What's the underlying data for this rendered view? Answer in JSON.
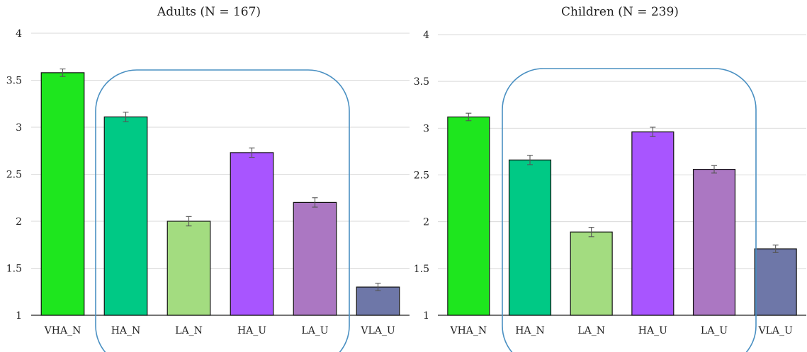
{
  "chart_data": [
    {
      "type": "bar",
      "title": "Adults (N = 167)",
      "categories": [
        "VHA_N",
        "HA_N",
        "LA_N",
        "HA_U",
        "LA_U",
        "VLA_U"
      ],
      "values": [
        3.58,
        3.11,
        2.0,
        2.73,
        2.2,
        1.3
      ],
      "errors": [
        0.04,
        0.05,
        0.05,
        0.05,
        0.05,
        0.04
      ],
      "colors": [
        "#1ee61e",
        "#00c985",
        "#a3dc80",
        "#a855ff",
        "#ab77c2",
        "#6e77a8"
      ],
      "ylim": [
        1,
        4
      ],
      "yticks": [
        "1",
        "1.5",
        "2",
        "2.5",
        "3",
        "3.5",
        "4"
      ],
      "grid": true,
      "highlight": "rounded outline around HA_N, LA_N, HA_U, LA_U"
    },
    {
      "type": "bar",
      "title": "Children (N = 239)",
      "categories": [
        "VHA_N",
        "HA_N",
        "LA_N",
        "HA_U",
        "LA_U",
        "VLA_U"
      ],
      "values": [
        3.12,
        2.66,
        1.89,
        2.96,
        2.56,
        1.71
      ],
      "errors": [
        0.04,
        0.05,
        0.05,
        0.05,
        0.04,
        0.04
      ],
      "colors": [
        "#1ee61e",
        "#00c985",
        "#a3dc80",
        "#a855ff",
        "#ab77c2",
        "#6e77a8"
      ],
      "ylim": [
        1,
        4
      ],
      "yticks": [
        "1",
        "1.5",
        "2",
        "2.5",
        "3",
        "3.5",
        "4"
      ],
      "grid": true,
      "highlight": "rounded outline around HA_N, LA_N, HA_U, LA_U"
    }
  ]
}
